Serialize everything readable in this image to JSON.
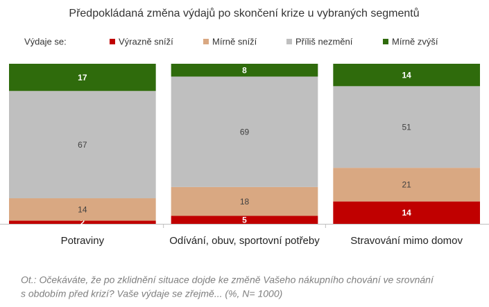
{
  "chart_data": {
    "type": "stacked_bar",
    "title": "Předpokládaná změna výdajů po skončení krize u vybraných segmentů",
    "legend_title": "Výdaje se:",
    "categories": [
      "Potraviny",
      "Odívání, obuv, sportovní potřeby",
      "Stravování mimo domov"
    ],
    "series": [
      {
        "name": "Výrazně sníží",
        "color": "#c00000",
        "values": [
          2,
          5,
          14
        ]
      },
      {
        "name": "Mírně sníží",
        "color": "#d9a882",
        "values": [
          14,
          18,
          21
        ]
      },
      {
        "name": "Příliš nezmění",
        "color": "#bfbfbf",
        "values": [
          67,
          69,
          51
        ]
      },
      {
        "name": "Mírně zvýší",
        "color": "#2f6b0c",
        "values": [
          17,
          8,
          14
        ]
      }
    ],
    "note": [
      "Ot.: Očekáváte, že po zklidnění situace dojde ke změně Vašeho nákupního chování ve srovnání",
      "s obdobím před krizí? Vaše výdaje se zřejmě... (%, N= 1000)"
    ]
  }
}
